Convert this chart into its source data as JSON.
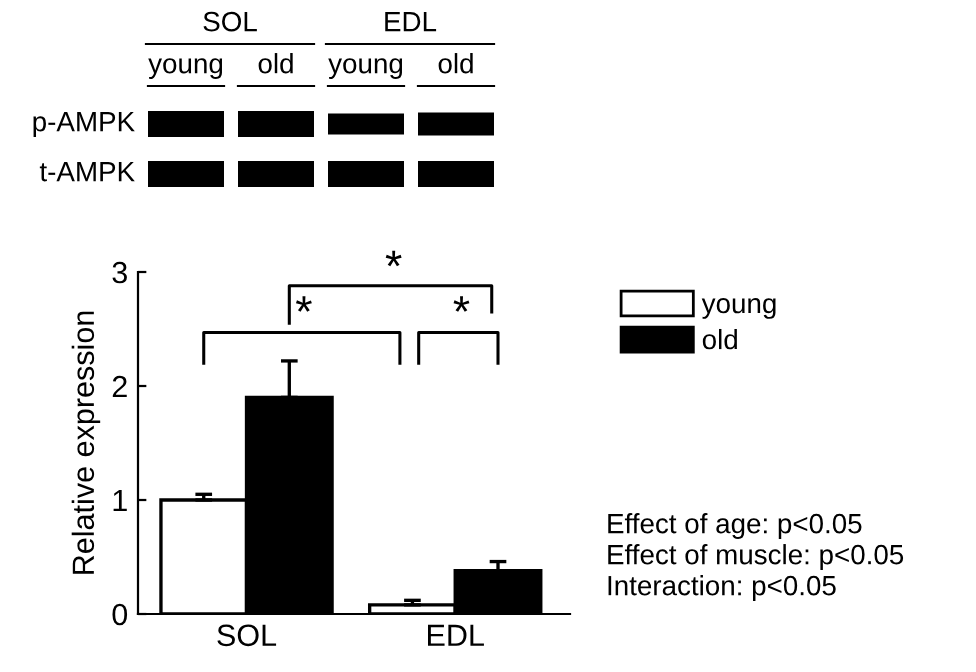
{
  "chart_data": {
    "type": "bar",
    "ylabel": "Relative expression",
    "categories": [
      "SOL",
      "EDL"
    ],
    "series": [
      {
        "name": "young",
        "color": "#ffffff",
        "values": [
          1.0,
          0.08
        ],
        "errors": [
          [
            1.0,
            1.05
          ],
          [
            0.08,
            0.12
          ]
        ]
      },
      {
        "name": "old",
        "color": "#000000",
        "values": [
          1.9,
          0.38
        ],
        "errors": [
          [
            1.9,
            2.22
          ],
          [
            0.38,
            0.46
          ]
        ]
      }
    ],
    "ylim": [
      0,
      3
    ],
    "yticks": [
      0,
      1,
      2,
      3
    ],
    "grid": false,
    "legend": "right",
    "annotations": [
      "SOL",
      "EDL",
      "young",
      "old",
      "young",
      "old",
      "p-AMPK",
      "t-AMPK",
      "*",
      "*",
      "*",
      "Effect of age: p<0.05",
      "Effect of muscle: p<0.05",
      "Interaction: p<0.05"
    ]
  }
}
